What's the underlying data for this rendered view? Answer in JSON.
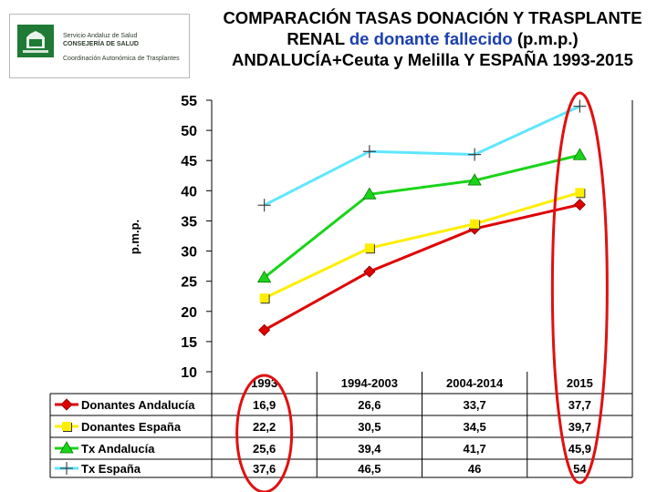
{
  "logo": {
    "line1": "Servicio Andaluz de Salud",
    "line2": "CONSEJERÍA DE SALUD",
    "line3": "Coordinación Autonómica de Trasplantes",
    "green": "#1e7a34"
  },
  "title": {
    "part1": "COMPARACIÓN TASAS DONACIÓN Y TRASPLANTE RENAL",
    "part2": " de donante fallecido",
    "part3": " (p.m.p.)   ANDALUCÍA+Ceuta y Melilla  Y ESPAÑA 1993-2015"
  },
  "chart_data": {
    "type": "line",
    "title": "COMPARACIÓN TASAS DONACIÓN Y TRASPLANTE RENAL de donante fallecido (p.m.p.) ANDALUCÍA+Ceuta y Melilla Y ESPAÑA 1993-2015",
    "ylabel": "p.m.p.",
    "xlabel": "",
    "ylim": [
      10,
      55
    ],
    "yticks": [
      10,
      15,
      20,
      25,
      30,
      35,
      40,
      45,
      50,
      55
    ],
    "grid": false,
    "categories": [
      "1993",
      "1994-2003",
      "2004-2014",
      "2015"
    ],
    "series": [
      {
        "name": "Donantes Andalucía",
        "color": "#e00000",
        "marker": "diamond",
        "values": [
          16.9,
          26.6,
          33.7,
          37.7
        ],
        "labels": [
          "16,9",
          "26,6",
          "33,7",
          "37,7"
        ]
      },
      {
        "name": "Donantes España",
        "color": "#ffee00",
        "marker": "square",
        "values": [
          22.2,
          30.5,
          34.5,
          39.7
        ],
        "labels": [
          "22,2",
          "30,5",
          "34,5",
          "39,7"
        ]
      },
      {
        "name": "Tx Andalucía",
        "color": "#19d419",
        "marker": "triangle",
        "values": [
          25.6,
          39.4,
          41.7,
          45.9
        ],
        "labels": [
          "25,6",
          "39,4",
          "41,7",
          "45,9"
        ]
      },
      {
        "name": "Tx España",
        "color": "#5fe6ff",
        "marker": "plus",
        "values": [
          37.6,
          46.5,
          46,
          54
        ],
        "labels": [
          "37,6",
          "46,5",
          "46",
          "54"
        ]
      }
    ],
    "highlight_color": "#e01010"
  }
}
